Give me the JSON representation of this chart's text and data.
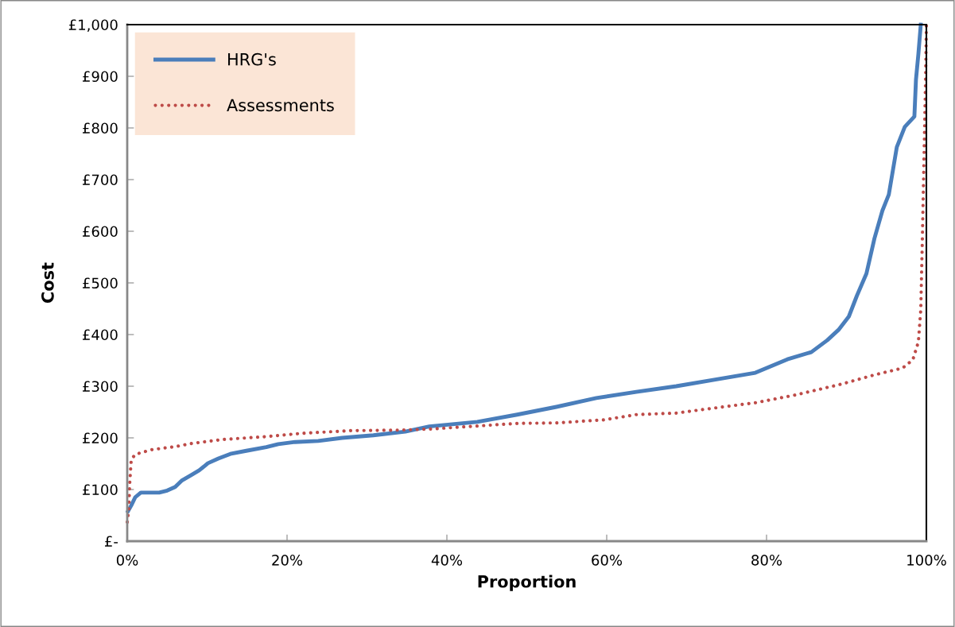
{
  "chart_data": {
    "type": "line",
    "xlabel": "Proportion",
    "ylabel": "Cost",
    "xlim": [
      0,
      100
    ],
    "ylim": [
      0,
      1000
    ],
    "xticks": [
      {
        "value": 0,
        "label": "0%"
      },
      {
        "value": 20,
        "label": "20%"
      },
      {
        "value": 40,
        "label": "40%"
      },
      {
        "value": 60,
        "label": "60%"
      },
      {
        "value": 80,
        "label": "80%"
      },
      {
        "value": 100,
        "label": "100%"
      }
    ],
    "yticks": [
      {
        "value": 0,
        "label": "£-"
      },
      {
        "value": 100,
        "label": "£100"
      },
      {
        "value": 200,
        "label": "£200"
      },
      {
        "value": 300,
        "label": "£300"
      },
      {
        "value": 400,
        "label": "£400"
      },
      {
        "value": 500,
        "label": "£500"
      },
      {
        "value": 600,
        "label": "£600"
      },
      {
        "value": 700,
        "label": "£700"
      },
      {
        "value": 800,
        "label": "£800"
      },
      {
        "value": 900,
        "label": "£900"
      },
      {
        "value": 1000,
        "label": "£1,000"
      }
    ],
    "grid": false,
    "legend": "top left",
    "marker": "none",
    "series": [
      {
        "name": "HRG's",
        "color": "#4a7ebb",
        "line_style": "solid",
        "x": [
          0.1,
          0.5,
          1,
          1.7,
          4,
          5,
          6,
          6.8,
          8,
          9,
          10.1,
          11.4,
          12.9,
          14.9,
          17.4,
          18.9,
          21,
          23.9,
          26.9,
          30.8,
          34.8,
          37.8,
          43.8,
          48.8,
          53.7,
          58.7,
          63.7,
          68.7,
          73.6,
          78.6,
          82.6,
          85.6,
          87.6,
          89,
          90.3,
          91.3,
          92.5,
          93.5,
          94.5,
          95.3,
          96.3,
          97.3,
          98.5,
          98.7,
          99,
          99.3
        ],
        "values": [
          58,
          69,
          85,
          94,
          94,
          98,
          105,
          117,
          128,
          137,
          151,
          160,
          169,
          175,
          182,
          188,
          192,
          194,
          200,
          205,
          212,
          222,
          231,
          245,
          260,
          277,
          289,
          300,
          313,
          326,
          352,
          366,
          389,
          409,
          435,
          475,
          518,
          586,
          640,
          671,
          763,
          802,
          822,
          894,
          943,
          1000
        ]
      },
      {
        "name": "Assessments",
        "color": "#be4b48",
        "line_style": "dotted",
        "x": [
          0,
          0.2,
          0.3,
          0.5,
          1,
          3,
          6,
          8,
          12,
          17,
          22,
          28,
          34,
          37.8,
          43.8,
          48.8,
          53.7,
          59.7,
          63.7,
          68.7,
          73.6,
          78.6,
          83.6,
          89.6,
          93.5,
          97,
          98.3,
          99,
          99.3,
          99.5,
          99.7,
          99.9,
          100
        ],
        "values": [
          37,
          63,
          109,
          158,
          168,
          177,
          183,
          189,
          197,
          202,
          209,
          214,
          215,
          217,
          223,
          228,
          229,
          235,
          245,
          248,
          258,
          268,
          283,
          305,
          322,
          335,
          351,
          386,
          448,
          586,
          740,
          894,
          1000
        ]
      }
    ]
  }
}
